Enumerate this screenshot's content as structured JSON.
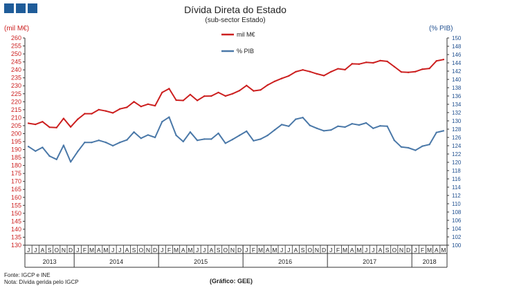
{
  "header": {
    "title": "Dívida Direta do Estado",
    "subtitle": "(sub-sector Estado)"
  },
  "footer": {
    "source": "Fonte: IGCP e INE",
    "note": "Nota: Dívida gerida pelo IGCP",
    "credit": "(Gráfico: GEE)"
  },
  "colors": {
    "red": "#cc1f1f",
    "blue": "#4a78a8",
    "logo": "#1f5c99"
  },
  "chart_data": {
    "type": "line",
    "title": "Dívida Direta do Estado",
    "subtitle": "(sub-sector Estado)",
    "ylabel_left": "(mil M€)",
    "ylabel_right": "(% PIB)",
    "ylim_left": [
      130,
      260
    ],
    "ylim_right": [
      100,
      150
    ],
    "yticks_left": [
      "130",
      "135",
      "140",
      "145",
      "150",
      "155",
      "160",
      "165",
      "170",
      "175",
      "180",
      "185",
      "190",
      "195",
      "200",
      "205",
      "210",
      "215",
      "220",
      "225",
      "230",
      "235",
      "240",
      "245",
      "250",
      "255",
      "260"
    ],
    "yticks_right": [
      "100",
      "102",
      "104",
      "106",
      "108",
      "110",
      "112",
      "114",
      "116",
      "118",
      "120",
      "122",
      "124",
      "126",
      "128",
      "130",
      "132",
      "134",
      "136",
      "138",
      "140",
      "142",
      "144",
      "146",
      "148",
      "150"
    ],
    "legend_position": "top-center",
    "x": [
      "J",
      "J",
      "A",
      "S",
      "O",
      "N",
      "D",
      "J",
      "F",
      "M",
      "A",
      "M",
      "J",
      "J",
      "A",
      "S",
      "O",
      "N",
      "D",
      "J",
      "F",
      "M",
      "A",
      "M",
      "J",
      "J",
      "A",
      "S",
      "O",
      "N",
      "D",
      "J",
      "F",
      "M",
      "A",
      "M",
      "J",
      "J",
      "A",
      "S",
      "O",
      "N",
      "D",
      "J",
      "F",
      "M",
      "A",
      "M",
      "J",
      "J",
      "A",
      "S",
      "O",
      "N",
      "D",
      "J",
      "F",
      "M",
      "A",
      "M"
    ],
    "years": [
      {
        "label": "2013",
        "start": 0,
        "end": 6
      },
      {
        "label": "2014",
        "start": 7,
        "end": 18
      },
      {
        "label": "2015",
        "start": 19,
        "end": 30
      },
      {
        "label": "2016",
        "start": 31,
        "end": 42
      },
      {
        "label": "2017",
        "start": 43,
        "end": 54
      },
      {
        "label": "2018",
        "start": 55,
        "end": 59
      }
    ],
    "series": [
      {
        "name": "mil M€",
        "axis": "left",
        "color": "#cc1f1f",
        "values": [
          206.5,
          205.8,
          207.5,
          204,
          203.8,
          209.5,
          204.2,
          209,
          212.5,
          212.5,
          215,
          214.2,
          213,
          215.5,
          216.5,
          220,
          217,
          218.5,
          217.5,
          225.8,
          228.2,
          221,
          220.8,
          224.5,
          220.8,
          223.5,
          223.6,
          225.8,
          223.6,
          225,
          227,
          230.2,
          226.8,
          227.4,
          230.5,
          232.8,
          234.6,
          236.2,
          238.8,
          240,
          238.9,
          237.5,
          236.4,
          238.8,
          240.7,
          240.1,
          243.8,
          243.6,
          244.7,
          244.4,
          245.8,
          245.3,
          242,
          238.7,
          238.4,
          238.9,
          240.4,
          240.9,
          245.6,
          246.5
        ]
      },
      {
        "name": "% PIB",
        "axis": "right",
        "color": "#4a78a8",
        "values": [
          123.8,
          122.7,
          123.6,
          121.5,
          120.7,
          124.1,
          120.1,
          122.6,
          124.8,
          124.8,
          125.3,
          124.8,
          124,
          124.8,
          125.4,
          127.3,
          125.8,
          126.6,
          126,
          129.8,
          130.9,
          126.5,
          125,
          127.3,
          125.3,
          125.6,
          125.6,
          127,
          124.6,
          125.5,
          126.5,
          127.5,
          125.2,
          125.6,
          126.5,
          127.8,
          129.1,
          128.7,
          130.4,
          130.8,
          128.9,
          128.2,
          127.6,
          127.8,
          128.7,
          128.5,
          129.3,
          129,
          129.5,
          128.2,
          128.8,
          128.7,
          125.3,
          123.7,
          123.5,
          122.9,
          123.9,
          124.3,
          127.2,
          127.6
        ]
      }
    ]
  }
}
